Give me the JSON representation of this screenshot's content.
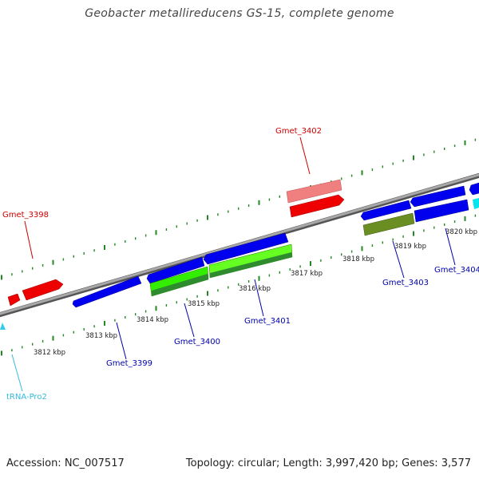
{
  "title": "Geobacter metallireducens GS-15, complete genome",
  "footer": {
    "accession": "Accession: NC_007517",
    "summary": "Topology: circular; Length: 3,997,420 bp; Genes: 3,577"
  },
  "colors": {
    "forward_gene": "#ff0000",
    "forward_gene_light": "#f08080",
    "reverse_gene": "#0000ee",
    "reverse_gene_light": "#33ee00",
    "reverse_gene_dark": "#228822",
    "reverse_gene_olive": "#6b8e23",
    "trna": "#33ccee",
    "backbone": "#888888",
    "ticks": "#228822",
    "label_forward": "#cc0000",
    "label_reverse": "#0000aa",
    "label_trna": "#33bbdd"
  },
  "kbp_labels": [
    "3812 kbp",
    "3813 kbp",
    "3814 kbp",
    "3815 kbp",
    "3816 kbp",
    "3817 kbp",
    "3818 kbp",
    "3819 kbp",
    "3820 kbp"
  ],
  "gene_labels": [
    {
      "name": "Gmet_3398",
      "strand": "forward"
    },
    {
      "name": "Gmet_3402",
      "strand": "forward"
    },
    {
      "name": "Gmet_3399",
      "strand": "reverse"
    },
    {
      "name": "Gmet_3400",
      "strand": "reverse"
    },
    {
      "name": "Gmet_3401",
      "strand": "reverse"
    },
    {
      "name": "Gmet_3403",
      "strand": "reverse"
    },
    {
      "name": "Gmet_3404",
      "strand": "reverse"
    },
    {
      "name": "tRNA-Pro2",
      "strand": "reverse"
    }
  ]
}
